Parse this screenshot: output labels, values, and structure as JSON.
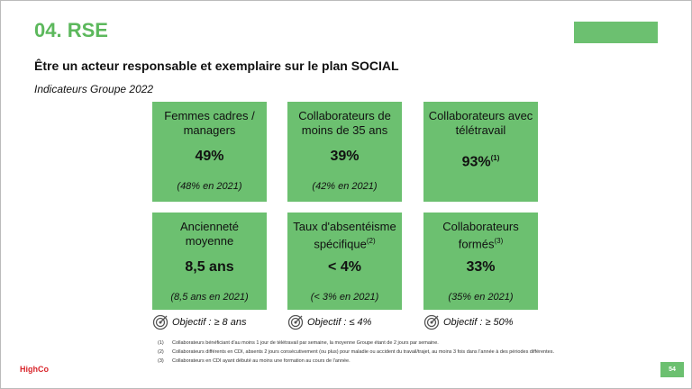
{
  "header": {
    "title": "04. RSE",
    "subtitle": "Être un acteur responsable et exemplaire sur le plan SOCIAL",
    "section": "Indicateurs Groupe 2022"
  },
  "cards": [
    {
      "label": [
        "Femmes cadres /",
        "managers"
      ],
      "value": "49%",
      "note": "(48% en 2021)"
    },
    {
      "label": [
        "Collaborateurs de",
        "moins de 35 ans"
      ],
      "value": "39%",
      "note": "(42% en 2021)"
    },
    {
      "label": [
        "Collaborateurs avec",
        "télétravail"
      ],
      "value": "93%",
      "value_sup": "(1)"
    },
    {
      "label": [
        "Ancienneté",
        "moyenne"
      ],
      "value": "8,5 ans",
      "note": "(8,5 ans en 2021)"
    },
    {
      "label": [
        "Taux d'absentéisme",
        "spécifique"
      ],
      "label_sup": "(2)",
      "value": "< 4%",
      "note": "(< 3% en 2021)"
    },
    {
      "label": [
        "Collaborateurs",
        "formés"
      ],
      "label_sup": "(3)",
      "value": "33%",
      "note": "(35% en 2021)"
    }
  ],
  "objectives": [
    "Objectif : ≥ 8 ans",
    "Objectif : ≤ 4%",
    "Objectif : ≥ 50%"
  ],
  "footnotes": [
    {
      "number": "(1)",
      "text": "Collaborateurs bénéficiant d'au moins 1 jour de télétravail par semaine, la moyenne Groupe étant de 2 jours par semaine."
    },
    {
      "number": "(2)",
      "text": "Collaborateurs différents en CDI, absents 2 jours consécutivement (ou plus) pour maladie ou accident du travail/trajet, au moins 3 fois dans l'année à des périodes différentes."
    },
    {
      "number": "(3)",
      "text": "Collaborateurs en CDI ayant débuté au moins une formation au cours de l'année."
    }
  ],
  "footer": {
    "logo": "HighCo",
    "page": "54"
  }
}
